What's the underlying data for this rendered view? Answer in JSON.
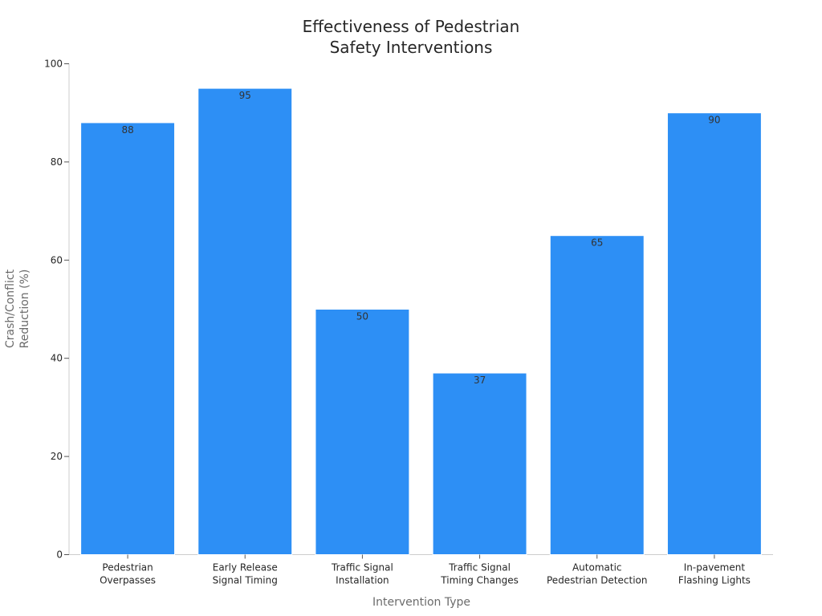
{
  "chart_data": {
    "type": "bar",
    "title": [
      "Effectiveness of Pedestrian",
      "Safety Interventions"
    ],
    "xlabel": "Intervention Type",
    "ylabel": [
      "Crash/Conflict",
      "Reduction (%)"
    ],
    "categories": [
      [
        "Pedestrian",
        "Overpasses"
      ],
      [
        "Early Release",
        "Signal Timing"
      ],
      [
        "Traffic Signal",
        "Installation"
      ],
      [
        "Traffic Signal",
        "Timing Changes"
      ],
      [
        "Automatic",
        "Pedestrian Detection"
      ],
      [
        "In-pavement",
        "Flashing Lights"
      ]
    ],
    "values": [
      88,
      95,
      50,
      37,
      65,
      90
    ],
    "data_labels": [
      "88",
      "95",
      "50",
      "37",
      "65",
      "90"
    ],
    "ylim": [
      0,
      100
    ],
    "yticks": [
      0,
      20,
      40,
      60,
      80,
      100
    ],
    "grid": false,
    "legend": "none",
    "bar_color": "#2d8ff5",
    "bar_edge_color": "#ffffff"
  }
}
